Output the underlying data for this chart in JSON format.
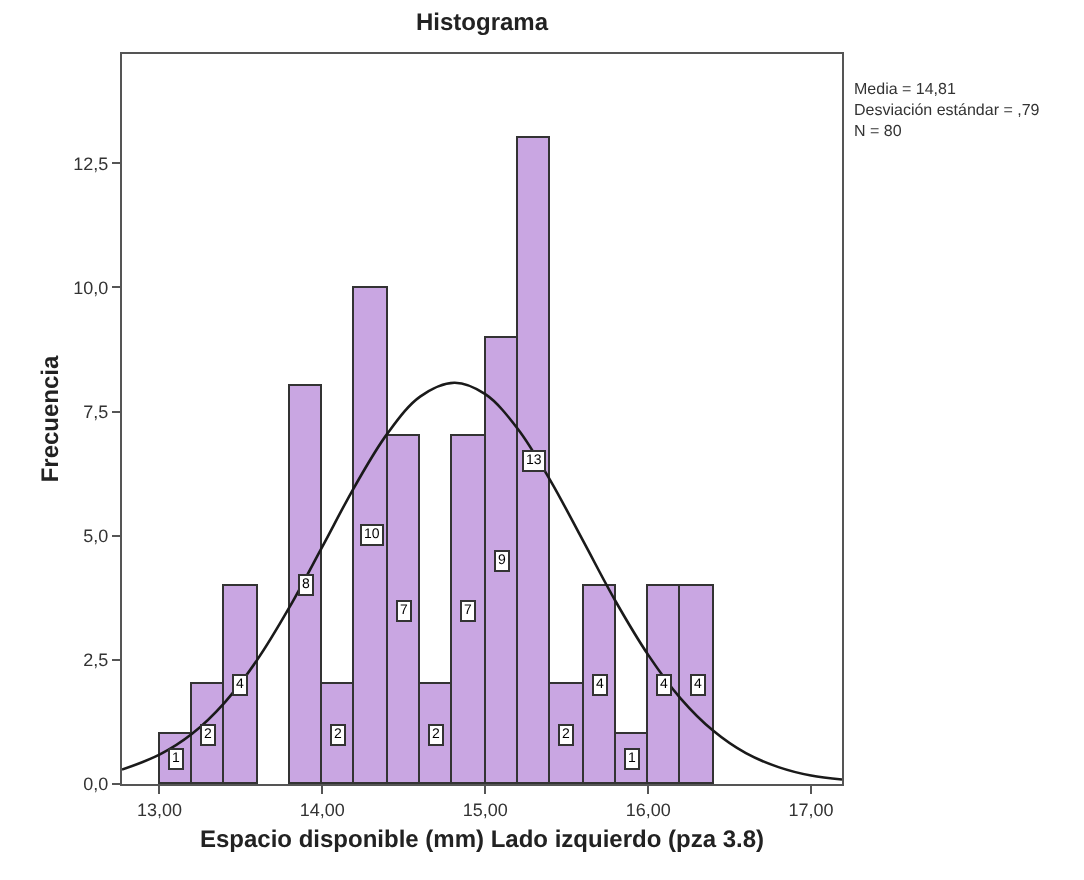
{
  "chart_data": {
    "type": "histogram",
    "title": "Histograma",
    "xlabel": "Espacio disponible (mm) Lado izquierdo (pza 3.8)",
    "ylabel": "Frecuencia",
    "bins": [
      13.0,
      13.2,
      13.4,
      13.6,
      13.8,
      14.0,
      14.2,
      14.4,
      14.6,
      14.8,
      15.0,
      15.2,
      15.4,
      15.6,
      15.8,
      16.0,
      16.2,
      16.4
    ],
    "values": [
      1,
      2,
      4,
      0,
      8,
      2,
      10,
      7,
      2,
      7,
      9,
      13,
      2,
      4,
      1,
      4,
      4
    ],
    "color": "#c9a6e2",
    "series": [
      {
        "type": "line",
        "color": "#1a1a1a",
        "x": [
          12.77,
          13.0,
          13.2,
          13.4,
          13.6,
          13.8,
          14.0,
          14.2,
          14.4,
          14.6,
          14.81,
          15.0,
          15.2,
          15.4,
          15.6,
          15.8,
          16.0,
          16.2,
          16.4,
          16.6,
          16.8,
          17.0,
          17.19
        ],
        "values": [
          0.29,
          0.59,
          1.01,
          1.64,
          2.5,
          3.57,
          4.78,
          6.0,
          7.06,
          7.8,
          8.08,
          7.85,
          7.15,
          6.11,
          4.9,
          3.68,
          2.6,
          1.72,
          1.07,
          0.62,
          0.34,
          0.17,
          0.09
        ]
      }
    ],
    "value_labels": [
      "1",
      "2",
      "4",
      null,
      "8",
      "2",
      "10",
      "7",
      "2",
      "7",
      "9",
      "13",
      "2",
      "4",
      "1",
      "4",
      "4"
    ],
    "xlim": [
      12.77,
      17.19
    ],
    "ylim": [
      0,
      14.7
    ],
    "xticks": [
      {
        "value": 13,
        "label": "13,00"
      },
      {
        "value": 14,
        "label": "14,00"
      },
      {
        "value": 15,
        "label": "15,00"
      },
      {
        "value": 16,
        "label": "16,00"
      },
      {
        "value": 17,
        "label": "17,00"
      }
    ],
    "yticks": [
      {
        "value": 0,
        "label": "0,0"
      },
      {
        "value": 2.5,
        "label": "2,5"
      },
      {
        "value": 5,
        "label": "5,0"
      },
      {
        "value": 7.5,
        "label": "7,5"
      },
      {
        "value": 10,
        "label": "10,0"
      },
      {
        "value": 12.5,
        "label": "12,5"
      }
    ],
    "annotations": [
      "Media = 14,81",
      "Desviación estándar = ,79",
      "N = 80"
    ]
  }
}
